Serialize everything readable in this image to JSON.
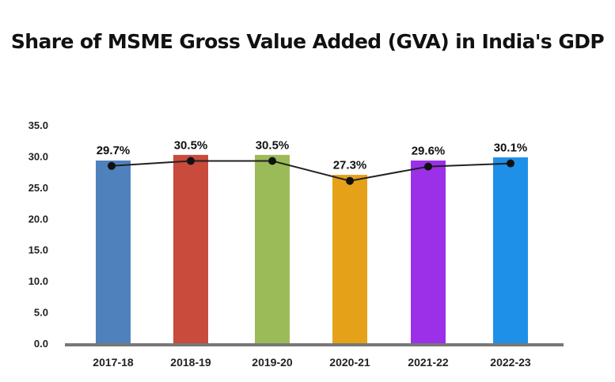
{
  "title": "Share of MSME Gross Value Added (GVA) in India's GDP",
  "chart_data": {
    "type": "bar",
    "title": "Share of MSME Gross Value Added (GVA) in India's GDP",
    "xlabel": "",
    "ylabel": "",
    "ylim": [
      0,
      35
    ],
    "yticks": [
      "0.0",
      "5.0",
      "10.0",
      "15.0",
      "20.0",
      "25.0",
      "30.0",
      "35.0"
    ],
    "categories": [
      "2017-18",
      "2018-19",
      "2019-20",
      "2020-21",
      "2021-22",
      "2022-23"
    ],
    "values": [
      29.7,
      30.5,
      30.5,
      27.3,
      29.6,
      30.1
    ],
    "data_labels": [
      "29.7%",
      "30.5%",
      "30.5%",
      "27.3%",
      "29.6%",
      "30.1%"
    ],
    "bar_colors": [
      "#4F81BD",
      "#C84B3C",
      "#9BBB59",
      "#E5A117",
      "#9B30E8",
      "#1E90E8"
    ],
    "line_overlay": true,
    "line_color": "#222222",
    "grid": false,
    "legend": "none"
  }
}
